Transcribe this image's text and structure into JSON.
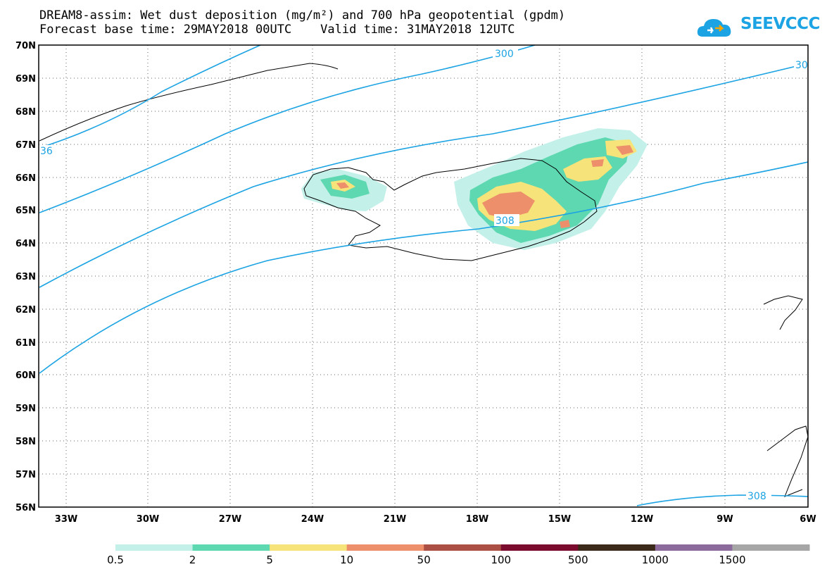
{
  "title": {
    "line1": "DREAM8-assim: Wet dust deposition (mg/m²) and 700 hPa geopotential (gpdm)",
    "line2": "Forecast base time: 29MAY2018 00UTC    Valid time: 31MAY2018 12UTC"
  },
  "logo": {
    "text": "SEEVCCC",
    "icon": "cloud-logo-icon"
  },
  "axes": {
    "lat_labels": [
      "70N",
      "69N",
      "68N",
      "67N",
      "66N",
      "65N",
      "64N",
      "63N",
      "62N",
      "61N",
      "60N",
      "59N",
      "58N",
      "57N",
      "56N"
    ],
    "lon_labels": [
      "33W",
      "30W",
      "27W",
      "24W",
      "21W",
      "18W",
      "15W",
      "12W",
      "9W",
      "6W"
    ]
  },
  "contour_labels": [
    "300",
    "30",
    "36",
    "308",
    "308"
  ],
  "legend": {
    "labels": [
      "0.5",
      "2",
      "5",
      "10",
      "50",
      "100",
      "500",
      "1000",
      "1500"
    ],
    "colors": [
      "#c4f0ea",
      "#5ed8b0",
      "#f6e37a",
      "#ec8f6a",
      "#ab4f45",
      "#7b0a2f",
      "#3b2a1a",
      "#8c6b9c",
      "#a6a6a6"
    ]
  },
  "chart_data": {
    "type": "map",
    "title": "DREAM8-assim: Wet dust deposition (mg/m²) and 700 hPa geopotential (gpdm)",
    "extent": {
      "lon": [
        -34,
        -6
      ],
      "lat": [
        56,
        70
      ]
    },
    "contour_levels_gpdm": [
      300,
      308
    ],
    "deposition_classes_mg_m2": [
      0.5,
      2,
      5,
      10,
      50,
      100,
      500,
      1000,
      1500
    ],
    "grid": true
  }
}
